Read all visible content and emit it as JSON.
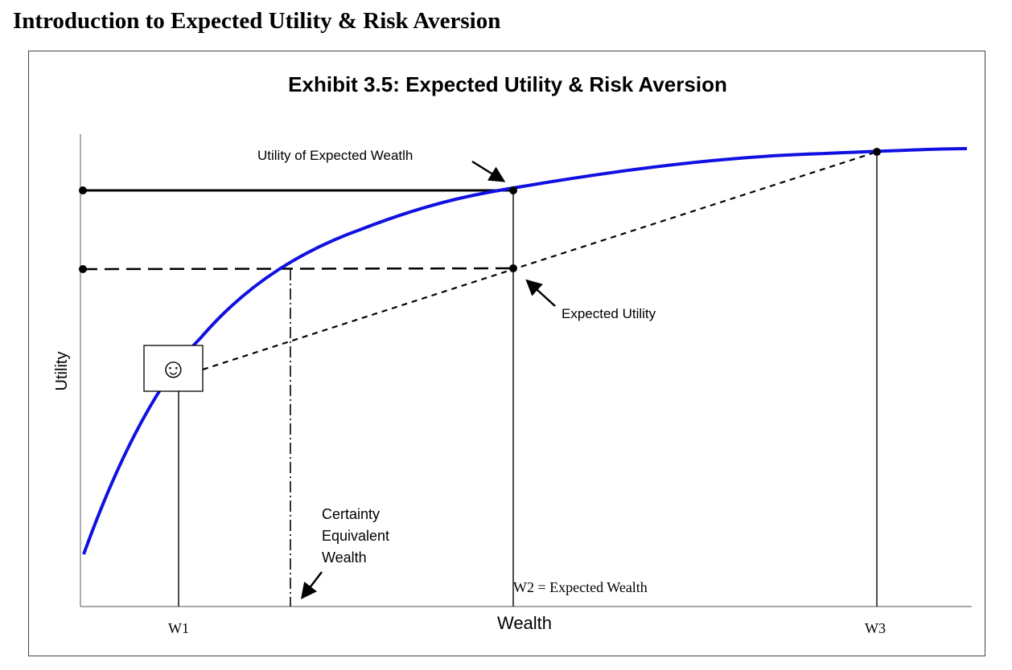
{
  "page": {
    "heading": "Introduction to Expected Utility & Risk Aversion"
  },
  "diagram": {
    "title": "Exhibit 3.5: Expected Utility & Risk Aversion",
    "y_axis_label": "Utility",
    "x_axis_label": "Wealth",
    "annotations": {
      "utility_of_expected_wealth": "Utility of Expected Weatlh",
      "expected_utility": "Expected Utility",
      "certainty_equivalent": [
        "Certainty",
        "Equivalent",
        "Wealth"
      ],
      "w2_label": "W2 = Expected Wealth"
    },
    "tick_labels": {
      "w1": "W1",
      "w3": "W3"
    },
    "smiley": "☺",
    "colors": {
      "utility_curve": "#1010e0",
      "lines": "#000000"
    }
  }
}
